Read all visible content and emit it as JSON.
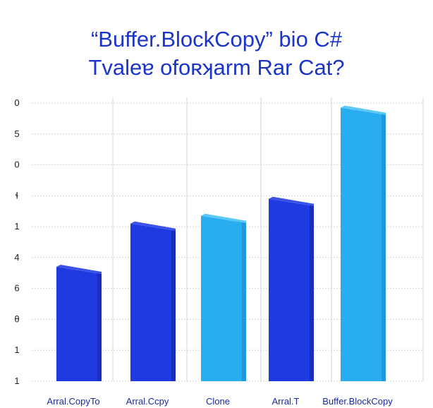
{
  "colors": {
    "title": "#1b35c8",
    "grid": "#d4d4d4",
    "dark_bar": "#1f3ae0",
    "dark_bar_side": "#1424a0",
    "dark_bar_top": "#3a52e8",
    "light_bar": "#29adf0",
    "light_bar_side": "#1a86cc",
    "light_bar_top": "#5cc8f6",
    "x_label": "#1a2a9e"
  },
  "chart_data": {
    "type": "bar",
    "title": "“Buffer.BlockCopy” bio C#",
    "subtitle": "Tvaleɐ ofoʀʞarm Rar Cat?",
    "xlabel": "",
    "ylabel": "",
    "categories": [
      "Arral.CopyTo",
      "Arral.Ccpy",
      "Clone",
      "Arral.T",
      "Buffer.BlockCopy"
    ],
    "values": [
      3.7,
      5.1,
      5.35,
      5.9,
      8.85
    ],
    "bar_styles": [
      "dark",
      "dark",
      "light",
      "dark",
      "light"
    ],
    "y_tick_labels": [
      "1",
      "1",
      "θ",
      "6",
      "4",
      "1",
      "ɬ",
      "0",
      "5",
      "0"
    ],
    "ylim": [
      0,
      9
    ],
    "grid": true,
    "legend": "none"
  }
}
